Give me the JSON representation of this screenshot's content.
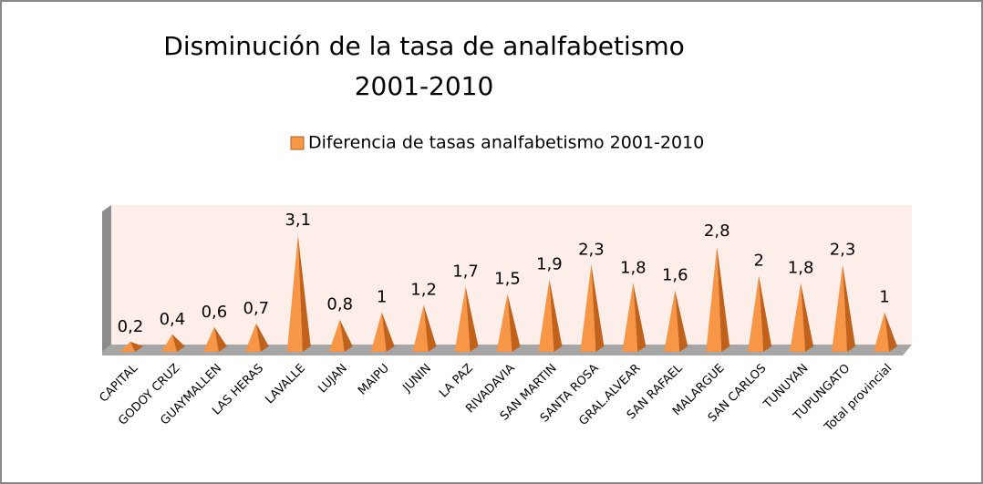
{
  "chart_data": {
    "type": "bar3d",
    "title": "Disminución de la tasa de analfabetismo",
    "subtitle": "2001-2010",
    "categories": [
      "CAPITAL",
      "GODOY CRUZ",
      "GUAYMALLEN",
      "LAS HERAS",
      "LAVALLE",
      "LUJAN",
      "MAIPU",
      "JUNIN",
      "LA PAZ",
      "RIVADAVIA",
      "SAN MARTIN",
      "SANTA ROSA",
      "GRAL.ALVEAR",
      "SAN RAFAEL",
      "MALARGUE",
      "SAN CARLOS",
      "TUNUYAN",
      "TUPUNGATO",
      "Total provincial"
    ],
    "series": [
      {
        "name": "Diferencia de tasas analfabetismo 2001-2010",
        "color": "#f79646",
        "values": [
          0.2,
          0.4,
          0.6,
          0.7,
          3.1,
          0.8,
          1,
          1.2,
          1.7,
          1.5,
          1.9,
          2.3,
          1.8,
          1.6,
          2.8,
          2,
          1.8,
          2.3,
          1
        ],
        "value_labels": [
          "0,2",
          "0,4",
          "0,6",
          "0,7",
          "3,1",
          "0,8",
          "1",
          "1,2",
          "1,7",
          "1,5",
          "1,9",
          "2,3",
          "1,8",
          "1,6",
          "2,8",
          "2",
          "1,8",
          "2,3",
          "1"
        ]
      }
    ],
    "legend": "top"
  }
}
